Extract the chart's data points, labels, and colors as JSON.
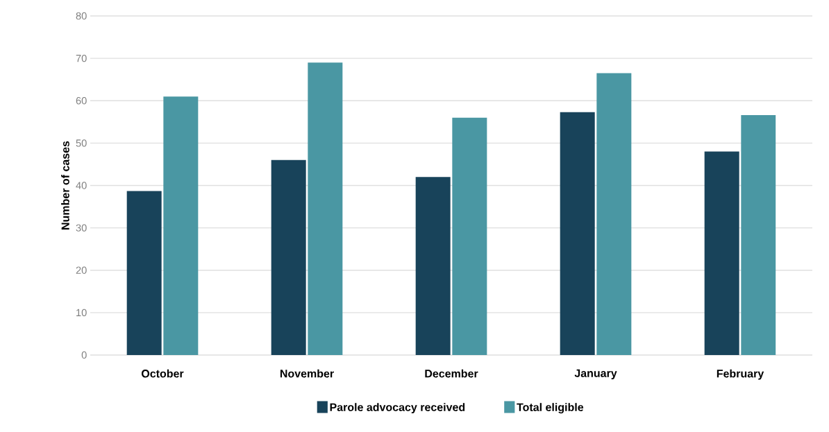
{
  "chart_data": {
    "type": "bar",
    "ylabel": "Number of cases",
    "categories": [
      "October",
      "November",
      "December",
      "January",
      "February"
    ],
    "series": [
      {
        "name": "Parole advocacy received",
        "color": "#18435a",
        "values": [
          38.7,
          46,
          42,
          57.3,
          48
        ]
      },
      {
        "name": "Total eligible",
        "color": "#4a97a3",
        "values": [
          61,
          69,
          56,
          66.5,
          56.6
        ]
      }
    ],
    "ylim": [
      0,
      80
    ],
    "yticks": [
      0,
      10,
      20,
      30,
      40,
      50,
      60,
      70,
      80
    ],
    "grid": "y",
    "legend": "bottom"
  }
}
